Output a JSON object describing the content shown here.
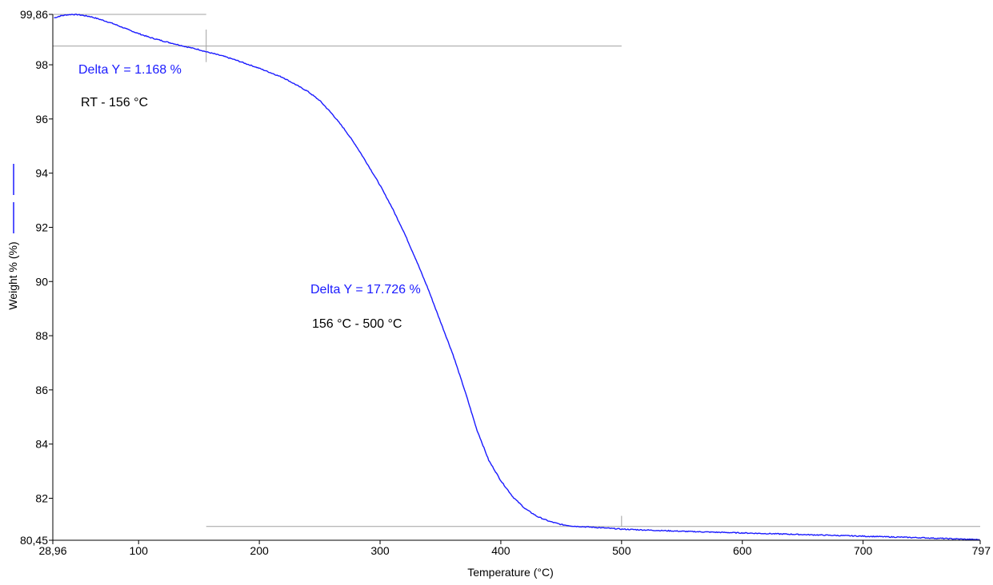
{
  "chart_data": {
    "type": "line",
    "title": "",
    "xlabel": "Temperature (°C)",
    "ylabel": "Weight % (%)",
    "xlim": [
      28.96,
      797
    ],
    "ylim": [
      80.45,
      99.86
    ],
    "x_tick_labels": [
      {
        "value": 28.96,
        "label": "28,96"
      },
      {
        "value": 100,
        "label": "100"
      },
      {
        "value": 200,
        "label": "200"
      },
      {
        "value": 300,
        "label": "300"
      },
      {
        "value": 400,
        "label": "400"
      },
      {
        "value": 500,
        "label": "500"
      },
      {
        "value": 600,
        "label": "600"
      },
      {
        "value": 700,
        "label": "700"
      },
      {
        "value": 797,
        "label": "797"
      }
    ],
    "y_tick_labels": [
      {
        "value": 80.45,
        "label": "80,45"
      },
      {
        "value": 82,
        "label": "82"
      },
      {
        "value": 84,
        "label": "84"
      },
      {
        "value": 86,
        "label": "86"
      },
      {
        "value": 88,
        "label": "88"
      },
      {
        "value": 90,
        "label": "90"
      },
      {
        "value": 92,
        "label": "92"
      },
      {
        "value": 94,
        "label": "94"
      },
      {
        "value": 96,
        "label": "96"
      },
      {
        "value": 98,
        "label": "98"
      },
      {
        "value": 99.86,
        "label": "99,86"
      }
    ],
    "colors": {
      "series": "#1a1aff",
      "annotation_blue": "#1a1aff",
      "annotation_black": "#000000",
      "guide": "#a0a0a0",
      "axis": "#000000"
    },
    "series": [
      {
        "x": [
          30,
          35,
          40,
          45,
          50,
          60,
          70,
          80,
          90,
          100,
          110,
          120,
          130,
          140,
          150,
          156,
          170,
          180,
          200,
          220,
          240,
          250,
          260,
          270,
          280,
          290,
          300,
          310,
          320,
          330,
          340,
          350,
          360,
          370,
          380,
          390,
          400,
          410,
          420,
          430,
          440,
          450,
          460,
          480,
          500,
          550,
          600,
          650,
          700,
          750,
          797
        ],
        "y": [
          99.73,
          99.8,
          99.84,
          99.86,
          99.85,
          99.78,
          99.65,
          99.5,
          99.32,
          99.15,
          99.0,
          98.88,
          98.77,
          98.66,
          98.56,
          98.48,
          98.32,
          98.18,
          97.87,
          97.52,
          97.02,
          96.68,
          96.2,
          95.65,
          95.02,
          94.3,
          93.55,
          92.72,
          91.8,
          90.78,
          89.7,
          88.52,
          87.35,
          86.0,
          84.55,
          83.4,
          82.65,
          82.05,
          81.62,
          81.33,
          81.15,
          81.03,
          80.97,
          80.92,
          80.86,
          80.78,
          80.72,
          80.66,
          80.6,
          80.54,
          80.47
        ]
      }
    ],
    "annotations": [
      {
        "text": "Delta Y = 1.168 %",
        "color": "blue"
      },
      {
        "text": "RT -  156 °C",
        "color": "black"
      },
      {
        "text": "Delta Y = 17.726 %",
        "color": "blue"
      },
      {
        "text": "156 °C - 500 °C",
        "color": "black"
      }
    ],
    "guide_lines": [
      {
        "x_from": 28.96,
        "x_to": 156,
        "y": 99.86
      },
      {
        "x_from": 28.96,
        "x_to": 500,
        "y": 98.69
      },
      {
        "x_from": 156,
        "x_to": 797,
        "y": 80.96
      }
    ],
    "guide_ticks": [
      {
        "x": 156,
        "y_from": 98.1,
        "y_to": 99.3
      },
      {
        "x": 500,
        "y_from": 80.96,
        "y_to": 81.35
      }
    ],
    "grid": false,
    "legend": "none"
  }
}
